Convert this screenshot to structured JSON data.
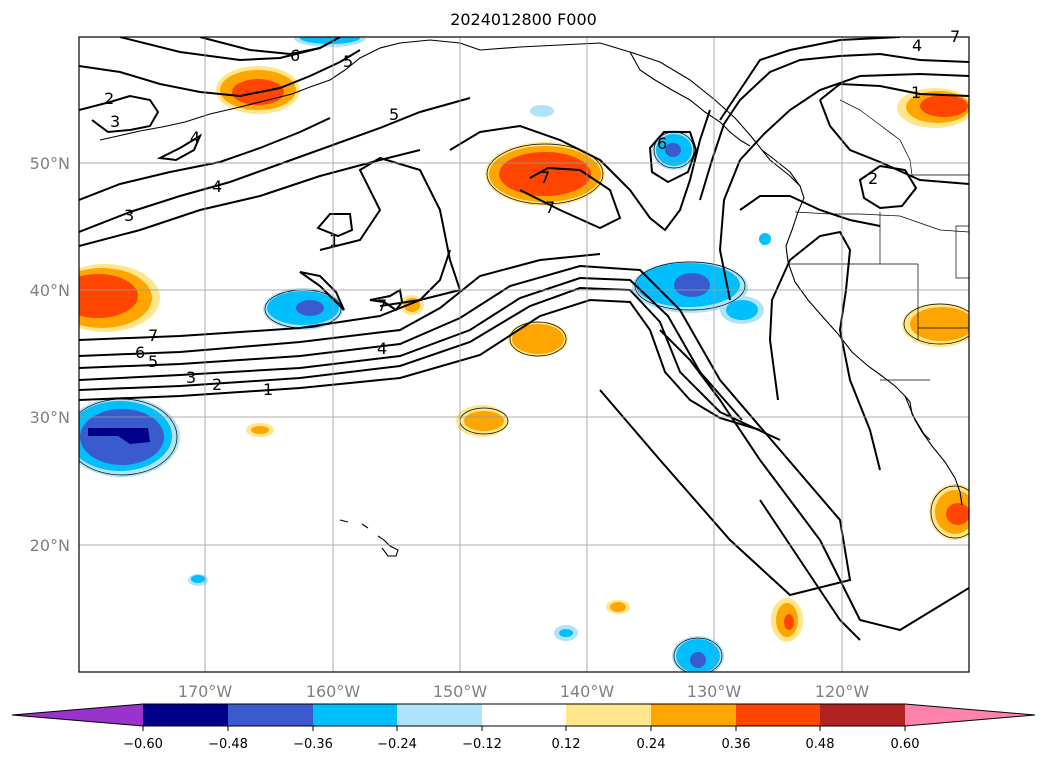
{
  "title": "2024012800 F000",
  "map": {
    "lat_labels": [
      "50°N",
      "40°N",
      "30°N",
      "20°N"
    ],
    "lon_labels": [
      "170°W",
      "160°W",
      "150°W",
      "140°W",
      "130°W",
      "120°W"
    ],
    "gridlines": true
  },
  "colorbar": {
    "tick_labels": [
      "−0.60",
      "−0.48",
      "−0.36",
      "−0.24",
      "−0.12",
      "0.12",
      "0.24",
      "0.36",
      "0.48",
      "0.60"
    ],
    "colors": [
      "#9933cc",
      "#00008b",
      "#3a5bcd",
      "#00bfff",
      "#aee3f8",
      "#ffffff",
      "#ffe68a",
      "#ffa500",
      "#ff4500",
      "#b22222",
      "#ff82aa"
    ],
    "extend": "both"
  },
  "contour_labels": [
    "1",
    "2",
    "3",
    "4",
    "5",
    "6",
    "7",
    "7",
    "4",
    "1",
    "2",
    "3",
    "4",
    "5",
    "6",
    "7",
    "1",
    "2",
    "3",
    "4",
    "5",
    "6",
    "7",
    "7"
  ]
}
